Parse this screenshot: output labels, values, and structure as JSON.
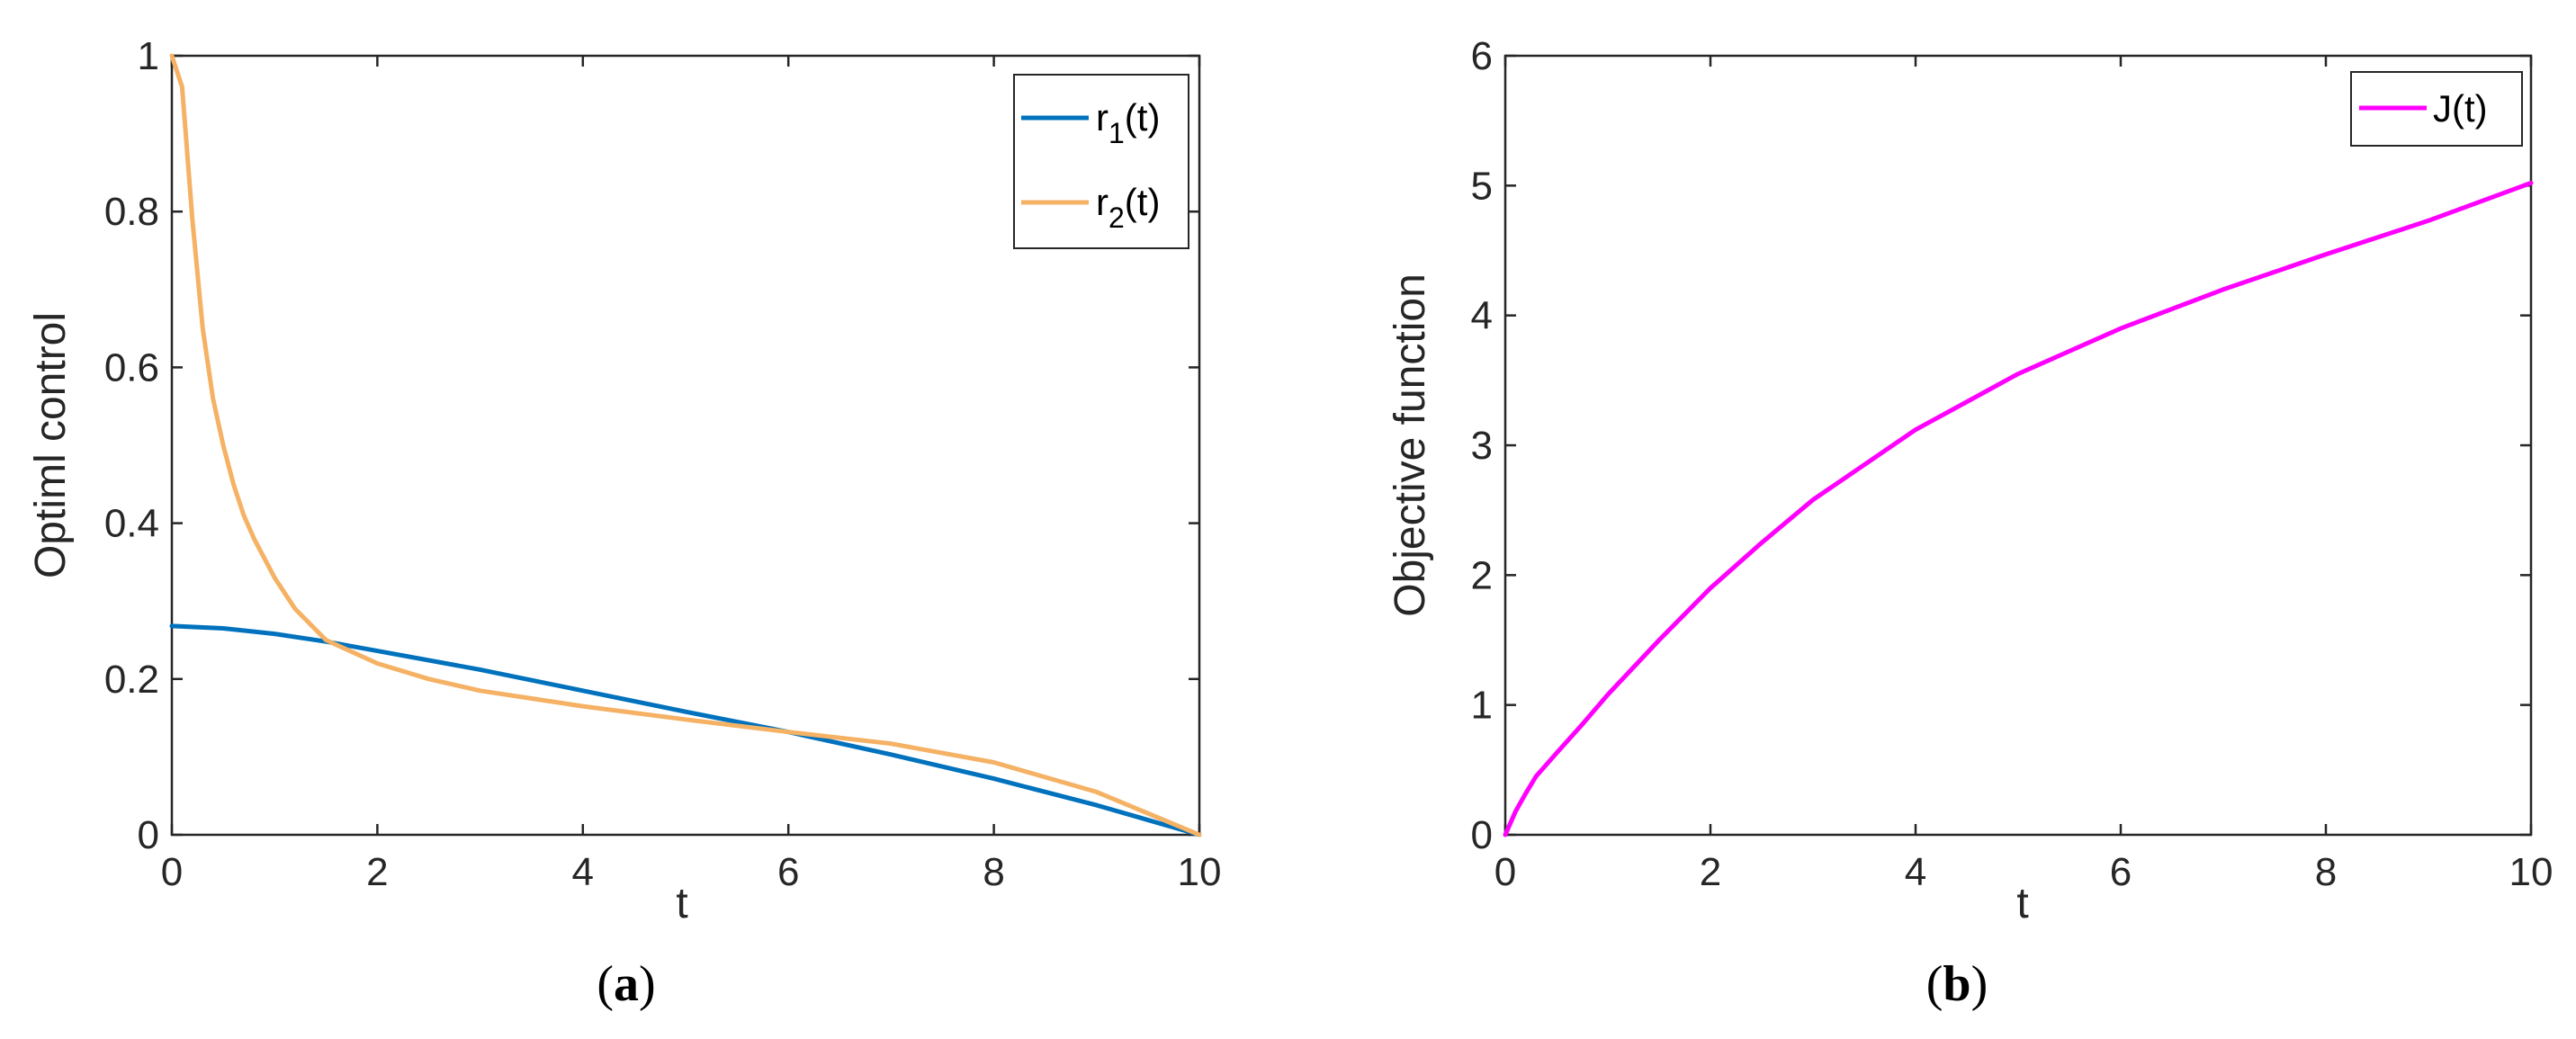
{
  "chart_data": [
    {
      "type": "line",
      "panel_label": "(a)",
      "xlabel": "t",
      "ylabel": "Optiml control",
      "xlim": [
        0,
        10
      ],
      "ylim": [
        0,
        1
      ],
      "xticks": [
        "0",
        "2",
        "4",
        "6",
        "8",
        "10"
      ],
      "yticks": [
        "0",
        "0.2",
        "0.4",
        "0.6",
        "0.8",
        "1"
      ],
      "legend": {
        "position": "top-right",
        "entries": [
          "r1(t)",
          "r2(t)"
        ]
      },
      "series": [
        {
          "name": "r1(t)",
          "legend_main": "r",
          "legend_sub": "1",
          "legend_tail": "(t)",
          "color": "#0072BD",
          "x": [
            0,
            0.5,
            1,
            1.5,
            2,
            3,
            4,
            5,
            6,
            7,
            8,
            9,
            10
          ],
          "y": [
            0.268,
            0.265,
            0.258,
            0.248,
            0.236,
            0.212,
            0.185,
            0.158,
            0.132,
            0.103,
            0.072,
            0.038,
            0
          ]
        },
        {
          "name": "r2(t)",
          "legend_main": "r",
          "legend_sub": "2",
          "legend_tail": "(t)",
          "color": "#F5B164",
          "x": [
            0,
            0.05,
            0.1,
            0.2,
            0.3,
            0.4,
            0.5,
            0.6,
            0.7,
            0.8,
            1,
            1.2,
            1.5,
            2,
            2.5,
            3,
            4,
            5,
            6,
            7,
            8,
            9,
            10
          ],
          "y": [
            1,
            0.98,
            0.96,
            0.79,
            0.65,
            0.56,
            0.5,
            0.45,
            0.41,
            0.38,
            0.33,
            0.29,
            0.25,
            0.22,
            0.2,
            0.185,
            0.165,
            0.148,
            0.132,
            0.117,
            0.093,
            0.055,
            0
          ]
        }
      ]
    },
    {
      "type": "line",
      "panel_label": "(b)",
      "xlabel": "t",
      "ylabel": "Objective function",
      "xlim": [
        0,
        10
      ],
      "ylim": [
        0,
        6
      ],
      "xticks": [
        "0",
        "2",
        "4",
        "6",
        "8",
        "10"
      ],
      "yticks": [
        "0",
        "1",
        "2",
        "3",
        "4",
        "5",
        "6"
      ],
      "legend": {
        "position": "top-right",
        "entries": [
          "J(t)"
        ]
      },
      "series": [
        {
          "name": "J(t)",
          "legend_main": "J(t)",
          "legend_sub": "",
          "legend_tail": "",
          "color": "#FF00FF",
          "x": [
            0,
            0.1,
            0.2,
            0.3,
            0.5,
            0.75,
            1,
            1.5,
            2,
            2.5,
            3,
            4,
            5,
            6,
            7,
            8,
            9,
            10
          ],
          "y": [
            0,
            0.18,
            0.32,
            0.45,
            0.63,
            0.85,
            1.08,
            1.5,
            1.9,
            2.25,
            2.58,
            3.12,
            3.55,
            3.9,
            4.2,
            4.47,
            4.73,
            5.02
          ]
        }
      ]
    }
  ]
}
